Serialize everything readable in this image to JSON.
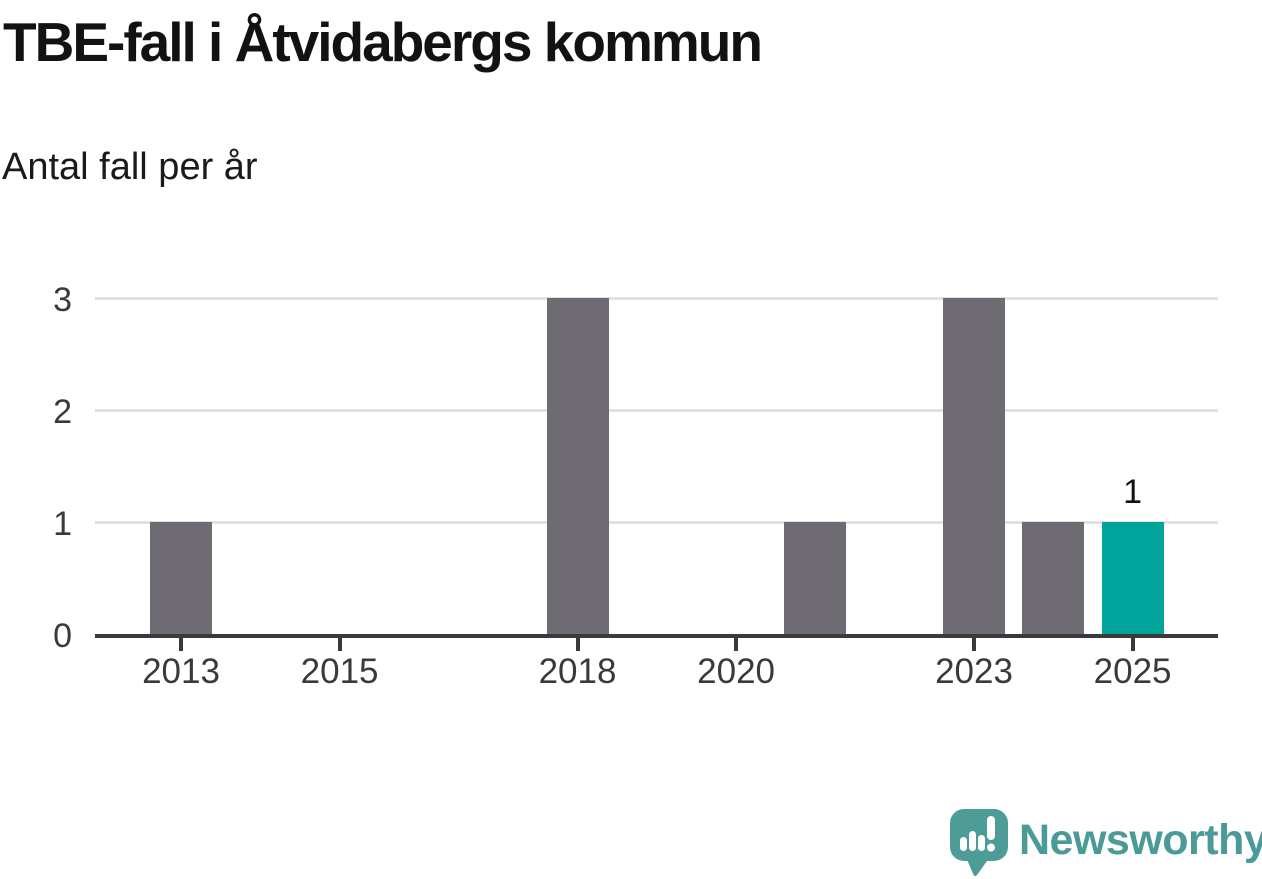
{
  "header": {
    "title": "TBE-fall i Åtvidabergs kommun",
    "subtitle": "Antal fall per år"
  },
  "chart_data": {
    "type": "bar",
    "title": "TBE-fall i Åtvidabergs kommun",
    "subtitle": "Antal fall per år",
    "xlabel": "",
    "ylabel": "Antal fall per år",
    "categories": [
      "2013",
      "2014",
      "2015",
      "2016",
      "2017",
      "2018",
      "2019",
      "2020",
      "2021",
      "2022",
      "2023",
      "2024",
      "2025"
    ],
    "values": [
      1,
      0,
      0,
      0,
      0,
      3,
      0,
      0,
      1,
      0,
      3,
      1,
      1
    ],
    "highlight_index": 12,
    "data_labels": [
      {
        "index": 12,
        "text": "1"
      }
    ],
    "x_tick_labels": [
      "2013",
      "2015",
      "2018",
      "2020",
      "2023",
      "2025"
    ],
    "y_ticks": [
      0,
      1,
      2,
      3
    ],
    "ylim": [
      0,
      3
    ],
    "grid": true,
    "legend": "none",
    "colors": {
      "bar": "#6e6c72",
      "highlight": "#00a49b",
      "gridline": "#e1e1e1",
      "axis": "#3a3a3a",
      "tick_label": "#3a3a3a"
    }
  },
  "footer": {
    "brand": "Newsworthy",
    "brand_color": "#4a9b98"
  }
}
